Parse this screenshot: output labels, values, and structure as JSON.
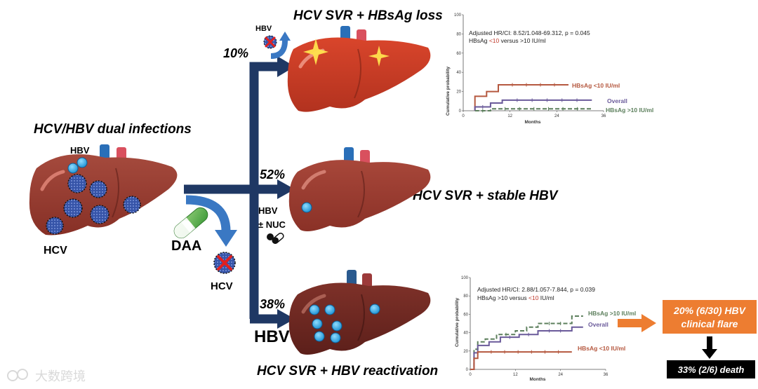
{
  "colors": {
    "arrow_navy": "#1f3864",
    "arrow_blue": "#3a78c3",
    "liver_top": "#c23b24",
    "liver_mid": "#9c3a2e",
    "liver_bot": "#6e2620",
    "virus_hcv": "#3b5fb0",
    "virus_hbv": "#29a9e1",
    "series_low": "#b5583f",
    "series_overall": "#6a5a9a",
    "series_high": "#5c7f5c",
    "flare_box": "#ed7d31",
    "death_box": "#000000"
  },
  "left": {
    "title": "HCV/HBV dual infections",
    "hbv_label": "HBV",
    "hcv_label": "HCV",
    "daa_label": "DAA",
    "hcv_cleared_label": "HCV"
  },
  "branches": {
    "top": {
      "percent": "10%",
      "title": "HCV SVR + HBsAg loss",
      "hbv_badge": "HBV"
    },
    "middle": {
      "percent": "52%",
      "title": "HCV SVR + stable HBV",
      "hbv_label": "HBV",
      "nuc_label": "± NUC"
    },
    "bottom": {
      "percent": "38%",
      "title": "HCV SVR + HBV reactivation",
      "hbv_label": "HBV"
    }
  },
  "outcomes": {
    "flare": {
      "line1": "20% (6/30) HBV",
      "line2": "clinical flare"
    },
    "death": "33% (2/6) death"
  },
  "watermark": "大数跨境",
  "chart_data": [
    {
      "type": "line",
      "step": true,
      "annotation_line1": "Adjusted HR/CI: 8.52/1.048-69.312, p = 0.045",
      "annotation_line2_prefix": "HBsAg ",
      "annotation_line2_hl1": "<10",
      "annotation_line2_mid": " versus ",
      "annotation_line2_hl2": ">10",
      "annotation_line2_suffix": " IU/ml",
      "xlabel": "Months",
      "ylabel": "Cumulative probability",
      "xlim": [
        0,
        36
      ],
      "ylim": [
        0,
        100
      ],
      "xticks": [
        0,
        12,
        24,
        36
      ],
      "yticks": [
        0,
        20,
        40,
        60,
        80,
        100
      ],
      "series": [
        {
          "name": "HBsAg <10 IU/ml",
          "color": "#b5583f",
          "dashed": false,
          "x": [
            3,
            3,
            6,
            6,
            9,
            9,
            27
          ],
          "y": [
            0,
            15,
            15,
            20,
            20,
            27,
            27
          ]
        },
        {
          "name": "Overall",
          "color": "#6a5a9a",
          "dashed": false,
          "x": [
            3,
            3,
            7,
            7,
            10,
            10,
            33
          ],
          "y": [
            0,
            4,
            4,
            8,
            8,
            11,
            11
          ]
        },
        {
          "name": "HBsAg >10 IU/ml",
          "color": "#5c7f5c",
          "dashed": true,
          "x": [
            3,
            7,
            7,
            33
          ],
          "y": [
            0,
            0,
            2,
            2
          ]
        }
      ]
    },
    {
      "type": "line",
      "step": true,
      "annotation_line1": "Adjusted HR/CI: 2.88/1.057-7.844, p = 0.039",
      "annotation_line2_prefix": "HBsAg ",
      "annotation_line2_hl1": ">10",
      "annotation_line2_mid": " versus ",
      "annotation_line2_hl2": "<10",
      "annotation_line2_suffix": " IU/ml",
      "xlabel": "Months",
      "ylabel": "Cumulative probability",
      "xlim": [
        0,
        36
      ],
      "ylim": [
        0,
        100
      ],
      "xticks": [
        0,
        12,
        24,
        36
      ],
      "yticks": [
        0,
        20,
        40,
        60,
        80,
        100
      ],
      "series": [
        {
          "name": "HBsAg >10 IU/ml",
          "color": "#5c7f5c",
          "dashed": true,
          "x": [
            0,
            1,
            1,
            2,
            2,
            4,
            4,
            7,
            7,
            12,
            12,
            15,
            15,
            18,
            18,
            27,
            27,
            30
          ],
          "y": [
            0,
            0,
            22,
            22,
            30,
            30,
            33,
            33,
            38,
            38,
            42,
            42,
            46,
            46,
            50,
            50,
            58,
            58
          ]
        },
        {
          "name": "Overall",
          "color": "#6a5a9a",
          "dashed": false,
          "x": [
            0,
            1,
            1,
            2,
            2,
            5,
            5,
            8,
            8,
            13,
            13,
            18,
            18,
            27,
            27,
            30
          ],
          "y": [
            0,
            0,
            18,
            18,
            26,
            26,
            30,
            30,
            35,
            35,
            38,
            38,
            42,
            42,
            46,
            46
          ]
        },
        {
          "name": "HBsAg <10 IU/ml",
          "color": "#b5583f",
          "dashed": false,
          "x": [
            0,
            1,
            1,
            2,
            2,
            27
          ],
          "y": [
            0,
            0,
            12,
            12,
            19,
            19
          ]
        }
      ]
    }
  ]
}
